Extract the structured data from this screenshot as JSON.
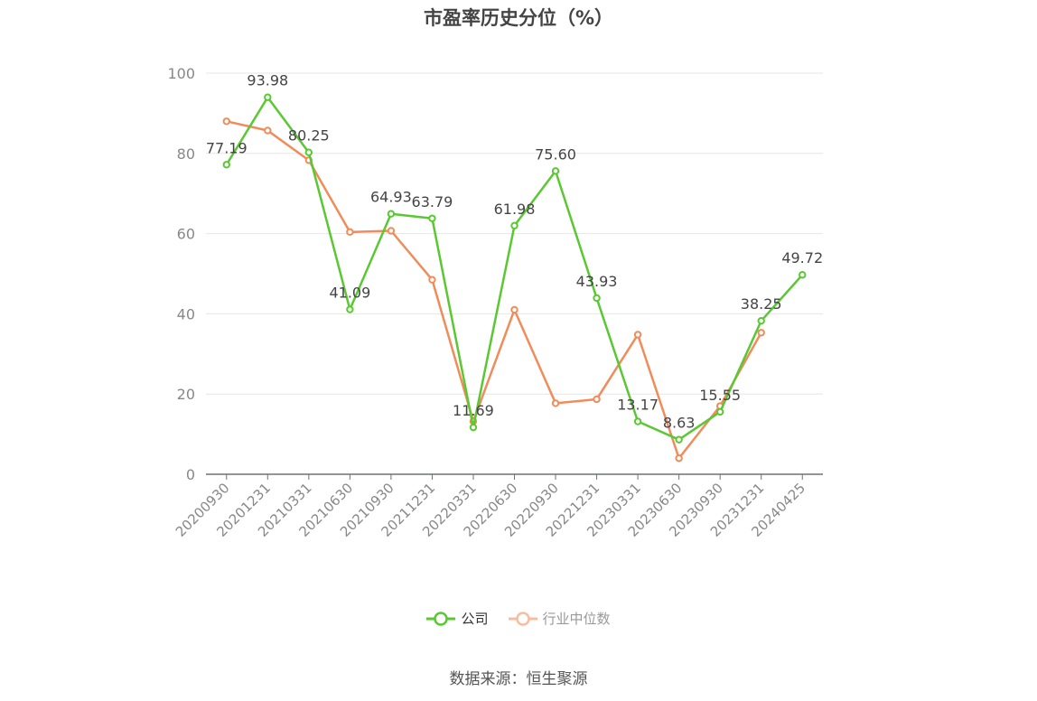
{
  "chart_data": {
    "type": "line",
    "title": "市盈率历史分位（%）",
    "xlabel": "",
    "ylabel": "",
    "ylim": [
      0,
      100
    ],
    "yticks": [
      0,
      20,
      40,
      60,
      80,
      100
    ],
    "grid": true,
    "legend_position": "bottom",
    "x": [
      "20200930",
      "20201231",
      "20210331",
      "20210630",
      "20210930",
      "20211231",
      "20220331",
      "20220630",
      "20220930",
      "20221231",
      "20230331",
      "20230630",
      "20230930",
      "20231231",
      "20240425"
    ],
    "series": [
      {
        "name": "公司",
        "color": "#5ac832",
        "values": [
          77.19,
          93.98,
          80.25,
          41.09,
          64.93,
          63.79,
          11.69,
          61.98,
          75.6,
          43.93,
          13.17,
          8.63,
          15.55,
          38.25,
          49.72
        ],
        "labels": [
          "77.19",
          "93.98",
          "80.25",
          "41.09",
          "64.93",
          "63.79",
          "11.69",
          "61.98",
          "75.60",
          "43.93",
          "13.17",
          "8.63",
          "15.55",
          "38.25",
          "49.72"
        ]
      },
      {
        "name": "行业中位数",
        "color": "#f08c5a",
        "legend_color": "#f7bca2",
        "values": [
          88.0,
          85.7,
          78.3,
          60.4,
          60.7,
          48.5,
          13.2,
          41.0,
          17.7,
          18.7,
          34.8,
          4.0,
          17.0,
          35.3,
          null
        ]
      }
    ]
  },
  "source": "数据来源：恒生聚源"
}
